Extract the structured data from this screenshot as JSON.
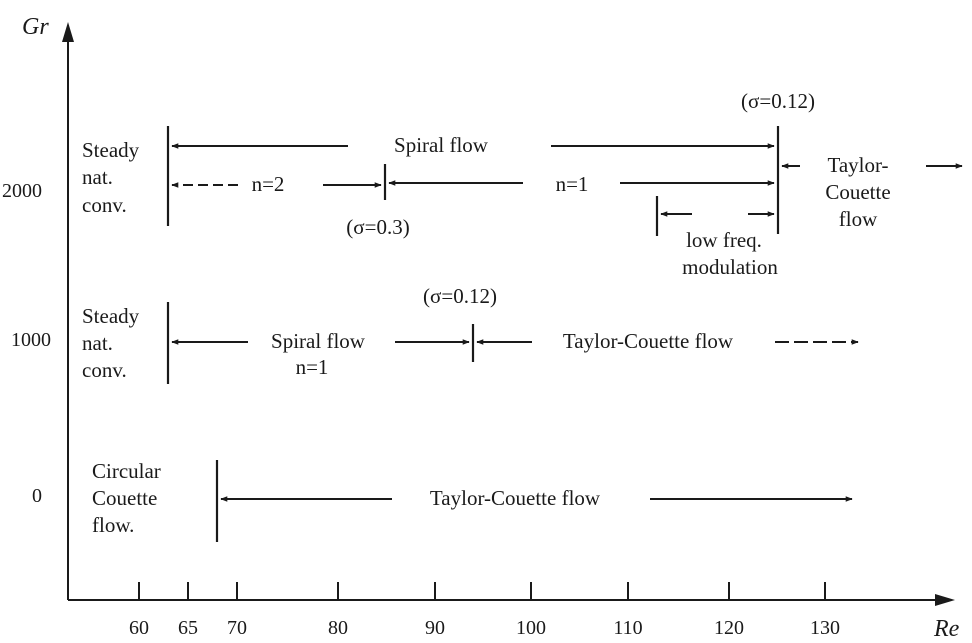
{
  "axes": {
    "x_title": "Re",
    "y_title": "Gr",
    "x_ticks": [
      "60",
      "65",
      "70",
      "80",
      "90",
      "100",
      "110",
      "120",
      "130"
    ],
    "y_ticks": [
      "2000",
      "1000",
      "0"
    ]
  },
  "gr2000": {
    "regime_steady": [
      "Steady",
      "nat.",
      "conv."
    ],
    "spiral_flow": "Spiral flow",
    "mode_n2": "n=2",
    "mode_n1": "n=1",
    "sigma_transition_mode": "(σ=0.3)",
    "sigma_transition_taylor": "(σ=0.12)",
    "low_freq": [
      "low freq.",
      "modulation"
    ],
    "taylor_couette": [
      "Taylor-",
      "Couette",
      "flow"
    ]
  },
  "gr1000": {
    "regime_steady": [
      "Steady",
      "nat.",
      "conv."
    ],
    "spiral_flow": [
      "Spiral flow",
      "n=1"
    ],
    "sigma_transition": "(σ=0.12)",
    "taylor_couette": "Taylor-Couette flow"
  },
  "gr0": {
    "regime_circular": [
      "Circular",
      "Couette",
      "flow."
    ],
    "taylor_couette": "Taylor-Couette flow"
  }
}
